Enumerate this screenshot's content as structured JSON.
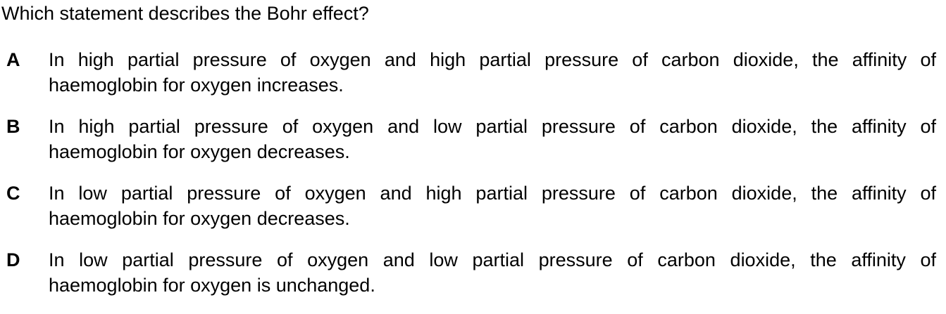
{
  "question": "Which statement describes the Bohr effect?",
  "options": [
    {
      "letter": "A",
      "line1": "In high partial pressure of oxygen and high partial pressure of carbon dioxide, the affinity of",
      "line2": "haemoglobin for oxygen increases."
    },
    {
      "letter": "B",
      "line1": "In high partial pressure of oxygen and low partial pressure of carbon dioxide, the affinity of",
      "line2": "haemoglobin for oxygen decreases."
    },
    {
      "letter": "C",
      "line1": "In low partial pressure of oxygen and high partial pressure of carbon dioxide, the affinity of",
      "line2": "haemoglobin for oxygen decreases."
    },
    {
      "letter": "D",
      "line1": "In low partial pressure of oxygen and low partial pressure of carbon dioxide, the affinity of",
      "line2": "haemoglobin for oxygen is unchanged."
    }
  ]
}
